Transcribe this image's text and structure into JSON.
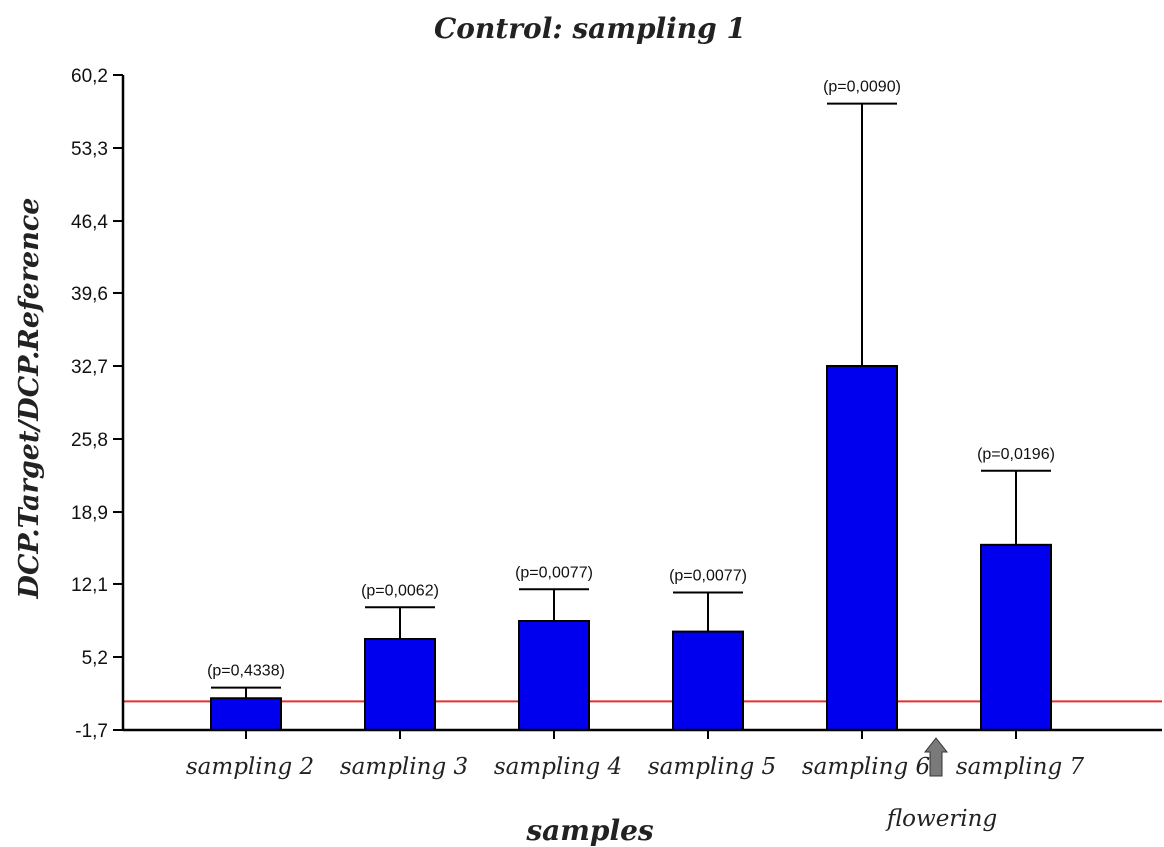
{
  "chart_data": {
    "type": "bar",
    "title": "Control: sampling 1",
    "xlabel": "samples",
    "ylabel": "DCP.Target/DCP.Reference",
    "ylim": [
      -1.7,
      60.2
    ],
    "yticks": [
      "-1,7",
      "5,2",
      "12,1",
      "18,9",
      "25,8",
      "32,7",
      "39,6",
      "46,4",
      "53,3",
      "60,2"
    ],
    "ytick_values": [
      -1.7,
      5.2,
      12.1,
      18.9,
      25.8,
      32.7,
      39.6,
      46.4,
      53.3,
      60.2
    ],
    "categories": [
      "sampling 2",
      "sampling 3",
      "sampling 4",
      "sampling 5",
      "sampling 6",
      "sampling 7"
    ],
    "values": [
      1.3,
      6.9,
      8.6,
      7.6,
      32.7,
      15.8
    ],
    "error_upper": [
      2.3,
      9.9,
      11.6,
      11.3,
      57.5,
      22.8
    ],
    "p_values": [
      "(p=0,4338)",
      "(p=0,0062)",
      "(p=0,0077)",
      "(p=0,0077)",
      "(p=0,0090)",
      "(p=0,0196)"
    ],
    "reference_line": {
      "value": 1.0,
      "color": "#e03030"
    },
    "bar_color": "#0000ee",
    "annotation": {
      "text": "flowering",
      "between": [
        "sampling 6",
        "sampling 7"
      ],
      "arrow": "up-arrow-icon"
    },
    "grid": false,
    "legend": "none"
  }
}
